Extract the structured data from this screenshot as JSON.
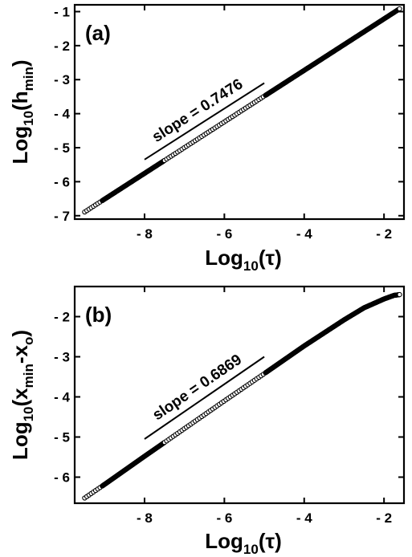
{
  "chart_data": [
    {
      "type": "scatter",
      "panel_label": "(a)",
      "xlabel": "Log10(τ)",
      "xlabel_parts": {
        "prefix": "Log",
        "sub": "10",
        "suffix": "(τ)"
      },
      "ylabel": "Log10(hmin)",
      "ylabel_parts": {
        "prefix": "Log",
        "sub": "10",
        "mid": "(h",
        "mid_sub": "min",
        "suffix": ")"
      },
      "xlim": [
        -9.75,
        -1.5
      ],
      "ylim": [
        -7.1,
        -0.8
      ],
      "x_ticks": [
        -8,
        -6,
        -4,
        -2
      ],
      "x_tick_labels": [
        "- 8",
        "- 6",
        "- 4",
        "- 2"
      ],
      "y_ticks": [
        -7,
        -6,
        -5,
        -4,
        -3,
        -2,
        -1
      ],
      "y_tick_labels": [
        "- 7",
        "- 6",
        "- 5",
        "- 4",
        "- 3",
        "- 2",
        "- 1"
      ],
      "grid": false,
      "series": [
        {
          "style": "circles",
          "curve": [
            [
              -9.5,
              -6.89
            ],
            [
              -1.6,
              -0.91
            ]
          ],
          "dense_ranges": [
            [
              -9.1,
              -7.5
            ],
            [
              -5.0,
              -1.6
            ]
          ]
        }
      ],
      "fit_line": {
        "x": [
          -8.0,
          -5.0
        ],
        "y": [
          -5.35,
          -3.1
        ]
      },
      "annotation": {
        "text": "slope = 0.7476",
        "slope": 0.7476
      }
    },
    {
      "type": "scatter",
      "panel_label": "(b)",
      "xlabel": "Log10(τ)",
      "xlabel_parts": {
        "prefix": "Log",
        "sub": "10",
        "suffix": "(τ)"
      },
      "ylabel": "Log10(xmin-xo)",
      "ylabel_parts": {
        "prefix": "Log",
        "sub": "10",
        "mid": "(x",
        "mid_sub": "min",
        "mid2": "-x",
        "mid2_sub": "o",
        "suffix": ")"
      },
      "xlim": [
        -9.75,
        -1.5
      ],
      "ylim": [
        -6.65,
        -1.25
      ],
      "x_ticks": [
        -8,
        -6,
        -4,
        -2
      ],
      "x_tick_labels": [
        "- 8",
        "- 6",
        "- 4",
        "- 2"
      ],
      "y_ticks": [
        -6,
        -5,
        -4,
        -3,
        -2
      ],
      "y_tick_labels": [
        "- 6",
        "- 5",
        "- 4",
        "- 3",
        "- 2"
      ],
      "grid": false,
      "series": [
        {
          "style": "circles",
          "curve": [
            [
              -9.5,
              -6.52
            ],
            [
              -9.0,
              -6.18
            ],
            [
              -8.0,
              -5.48
            ],
            [
              -7.0,
              -4.79
            ],
            [
              -6.0,
              -4.1
            ],
            [
              -5.0,
              -3.42
            ],
            [
              -4.0,
              -2.73
            ],
            [
              -3.0,
              -2.08
            ],
            [
              -2.5,
              -1.78
            ],
            [
              -2.0,
              -1.56
            ],
            [
              -1.75,
              -1.47
            ],
            [
              -1.6,
              -1.45
            ]
          ],
          "dense_ranges": [
            [
              -9.1,
              -7.5
            ],
            [
              -5.0,
              -1.6
            ]
          ]
        }
      ],
      "fit_line": {
        "x": [
          -8.0,
          -5.0
        ],
        "y": [
          -5.05,
          -3.0
        ]
      },
      "annotation": {
        "text": "slope = 0.6869",
        "slope": 0.6869
      }
    }
  ]
}
